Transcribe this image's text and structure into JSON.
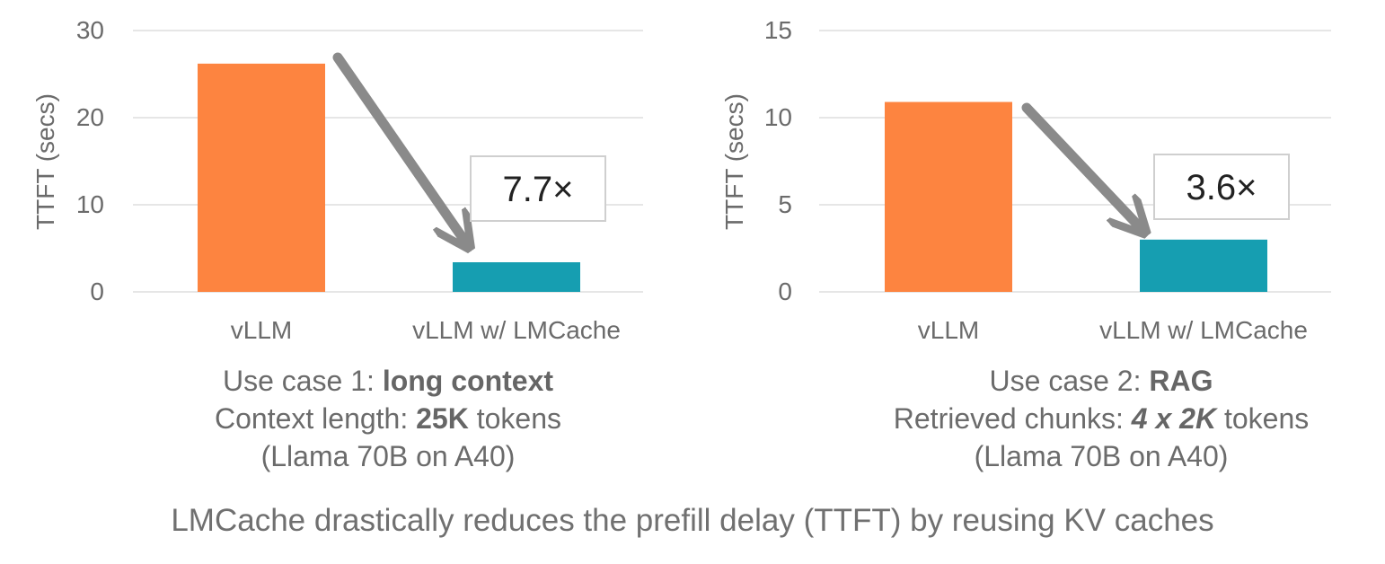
{
  "chart_data": [
    {
      "type": "bar",
      "categories": [
        "vLLM",
        "vLLM w/ LMCache"
      ],
      "values": [
        26.2,
        3.4
      ],
      "colors": [
        "#fd8440",
        "#169eb1"
      ],
      "ylabel": "TTFT (secs)",
      "ylim": [
        0,
        30
      ],
      "yticks": [
        "0",
        "10",
        "20",
        "30"
      ],
      "grid": true,
      "annotation": "7.7×",
      "caption": {
        "line1_prefix": "Use case 1: ",
        "line1_bold": "long context",
        "line2_prefix": "Context length: ",
        "line2_bold": "25K",
        "line2_suffix": " tokens",
        "line3": "(Llama 70B on A40)"
      }
    },
    {
      "type": "bar",
      "categories": [
        "vLLM",
        "vLLM w/ LMCache"
      ],
      "values": [
        10.9,
        3.0
      ],
      "colors": [
        "#fd8440",
        "#169eb1"
      ],
      "ylabel": "TTFT (secs)",
      "ylim": [
        0,
        15
      ],
      "yticks": [
        "0",
        "5",
        "10",
        "15"
      ],
      "grid": true,
      "annotation": "3.6×",
      "caption": {
        "line1_prefix": "Use case 2: ",
        "line1_bold": "RAG",
        "line2_prefix": "Retrieved chunks: ",
        "line2_bold": "4 x 2K",
        "line2_suffix": " tokens",
        "line3": "(Llama 70B on A40)"
      }
    }
  ],
  "footer": "LMCache drastically reduces the prefill delay (TTFT) by reusing KV caches"
}
